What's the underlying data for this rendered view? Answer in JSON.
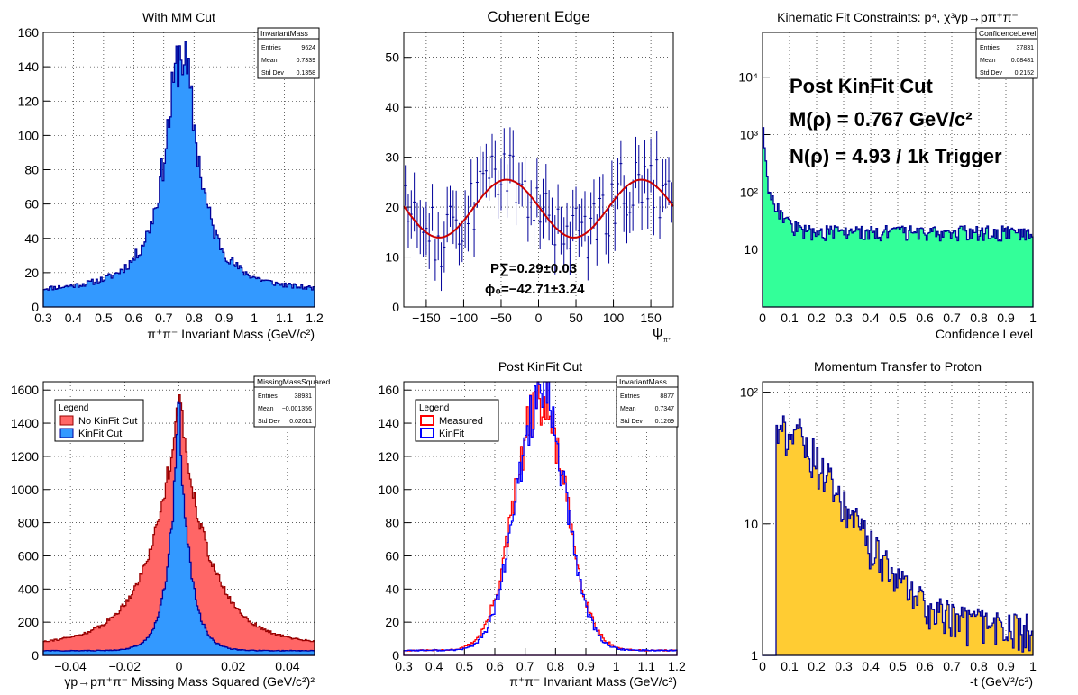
{
  "chart_data": [
    {
      "id": "p1",
      "type": "bar",
      "title": "With MM Cut",
      "xlabel": "π⁺π⁻ Invariant Mass (GeV/c²)",
      "ylabel": "",
      "xlim": [
        0.3,
        1.2
      ],
      "ylim": [
        0,
        160
      ],
      "xticks": [
        "0.3",
        "0.4",
        "0.5",
        "0.6",
        "0.7",
        "0.8",
        "0.9",
        "1",
        "1.1",
        "1.2"
      ],
      "yticks": [
        "0",
        "20",
        "40",
        "60",
        "80",
        "100",
        "120",
        "140",
        "160"
      ],
      "fill_color": "#3399ff",
      "line_color": "#000099",
      "hist": {
        "kind": "bw",
        "n": 180,
        "lo": 0.3,
        "hi": 1.2,
        "mu": 0.758,
        "gamma": 0.13,
        "peak": 148,
        "bg": 8,
        "noise": 0.12
      },
      "stats": {
        "name": "InvariantMass",
        "rows": [
          [
            "Entries",
            "9624"
          ],
          [
            "Mean",
            "0.7339"
          ],
          [
            "Std Dev",
            "0.1358"
          ]
        ]
      }
    },
    {
      "id": "p2",
      "type": "scatter",
      "title": "Coherent Edge",
      "xlabel": "ψ",
      "xlabel_sub": "π⁺",
      "ylabel": "",
      "xlim": [
        -180,
        180
      ],
      "ylim": [
        0,
        55
      ],
      "xticks": [
        "−150",
        "−100",
        "−50",
        "0",
        "50",
        "100",
        "150"
      ],
      "yticks": [
        "0",
        "10",
        "20",
        "30",
        "40",
        "50"
      ],
      "marker_color": "#000099",
      "fit_color": "#cc0000",
      "fit": {
        "amp": 5.8,
        "mean": 19.7,
        "phase_deg": -42.71
      },
      "points": {
        "n": 90,
        "spread": 6,
        "err": 5
      },
      "annotations": [
        "P∑=0.29±0.03",
        "ϕ₀=−42.71±3.24"
      ]
    },
    {
      "id": "p3",
      "type": "bar",
      "log_y": true,
      "title": "Kinematic Fit Constraints: p⁴, χ³γp→pπ⁺π⁻",
      "xlabel": "Confidence Level",
      "ylabel": "",
      "xlim": [
        0,
        1
      ],
      "ylim": [
        1,
        60000
      ],
      "xticks": [
        "0",
        "0.1",
        "0.2",
        "0.3",
        "0.4",
        "0.5",
        "0.6",
        "0.7",
        "0.8",
        "0.9",
        "1"
      ],
      "yticks": [
        "10",
        "10²",
        "10³",
        "10⁴"
      ],
      "fill_color": "#33ff99",
      "line_color": "#000099",
      "hist": {
        "kind": "cl",
        "n": 200,
        "lo": 0,
        "hi": 1,
        "noise": 0.25
      },
      "stats": {
        "name": "ConfidenceLevel",
        "rows": [
          [
            "Entries",
            "37831"
          ],
          [
            "Mean",
            "0.08481"
          ],
          [
            "Std Dev",
            "0.2152"
          ]
        ]
      },
      "annotations": [
        "Post KinFit Cut",
        "M(ρ) = 0.767 GeV/c²",
        "N(ρ) = 4.93 / 1k Trigger"
      ]
    },
    {
      "id": "p4",
      "type": "bar",
      "title": "",
      "xlabel": "γp→pπ⁺π⁻ Missing Mass Squared (GeV/c²)²",
      "ylabel": "",
      "xlim": [
        -0.05,
        0.05
      ],
      "ylim": [
        0,
        1650
      ],
      "xticks": [
        "−0.04",
        "−0.02",
        "0",
        "0.02",
        "0.04"
      ],
      "yticks": [
        "0",
        "200",
        "400",
        "600",
        "800",
        "1000",
        "1200",
        "1400",
        "1600"
      ],
      "series": [
        {
          "name": "No KinFit Cut",
          "fill_color": "#ff6666",
          "line_color": "#990000",
          "hist": {
            "kind": "mm",
            "n": 200,
            "lo": -0.05,
            "hi": 0.05,
            "peak": 1560,
            "wide": 0.011,
            "base": 70,
            "noise": 0.06
          }
        },
        {
          "name": "KinFit Cut",
          "fill_color": "#3399ff",
          "line_color": "#000099",
          "hist": {
            "kind": "mm",
            "n": 200,
            "lo": -0.05,
            "hi": 0.05,
            "peak": 1510,
            "wide": 0.004,
            "base": 28,
            "noise": 0.08
          }
        }
      ],
      "legend_title": "Legend",
      "stats": {
        "name": "MissingMassSquared",
        "rows": [
          [
            "Entries",
            "38931"
          ],
          [
            "Mean",
            "−0.001356"
          ],
          [
            "Std Dev",
            "0.02011"
          ]
        ]
      }
    },
    {
      "id": "p5",
      "type": "line",
      "title": "Post KinFit Cut",
      "xlabel": "π⁺π⁻ Invariant Mass (GeV/c²)",
      "ylabel": "",
      "xlim": [
        0.3,
        1.2
      ],
      "ylim": [
        0,
        165
      ],
      "xticks": [
        "0.3",
        "0.4",
        "0.5",
        "0.6",
        "0.7",
        "0.8",
        "0.9",
        "1",
        "1.1",
        "1.2"
      ],
      "yticks": [
        "0",
        "20",
        "40",
        "60",
        "80",
        "100",
        "120",
        "140",
        "160"
      ],
      "series": [
        {
          "name": "Measured",
          "line_color": "#ff0000",
          "hist": {
            "kind": "gaus",
            "n": 180,
            "lo": 0.3,
            "hi": 1.2,
            "mu": 0.75,
            "sigma": 0.085,
            "peak": 150,
            "bg": 3,
            "noise": 0.12
          }
        },
        {
          "name": "KinFit",
          "line_color": "#0000ff",
          "hist": {
            "kind": "gaus",
            "n": 180,
            "lo": 0.3,
            "hi": 1.2,
            "mu": 0.752,
            "sigma": 0.08,
            "peak": 155,
            "bg": 3,
            "noise": 0.12
          }
        }
      ],
      "legend_title": "Legend",
      "stats": {
        "name": "InvariantMass",
        "rows": [
          [
            "Entries",
            "8877"
          ],
          [
            "Mean",
            "0.7347"
          ],
          [
            "Std Dev",
            "0.1269"
          ]
        ]
      }
    },
    {
      "id": "p6",
      "type": "bar",
      "log_y": true,
      "title": "Momentum Transfer to Proton",
      "xlabel": "-t (GeV²/c²)",
      "ylabel": "",
      "xlim": [
        0,
        1
      ],
      "ylim": [
        1,
        120
      ],
      "xticks": [
        "0",
        "0.1",
        "0.2",
        "0.3",
        "0.4",
        "0.5",
        "0.6",
        "0.7",
        "0.8",
        "0.9",
        "1"
      ],
      "yticks": [
        "1",
        "10",
        "10²"
      ],
      "fill_color": "#ffcc33",
      "line_color": "#000099",
      "hist": {
        "kind": "t",
        "n": 200,
        "lo": 0,
        "hi": 1,
        "noise": 0.35
      }
    }
  ]
}
